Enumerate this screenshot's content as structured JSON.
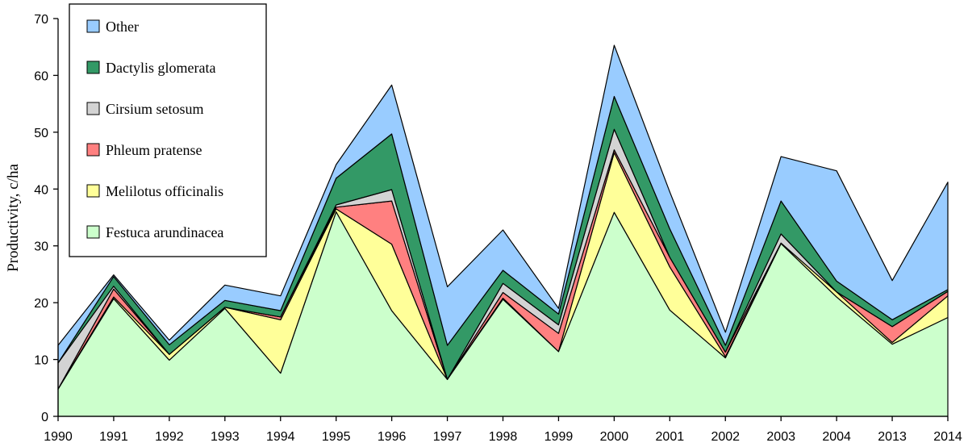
{
  "chart_data": {
    "type": "area",
    "stacked": true,
    "title": "",
    "xlabel": "",
    "ylabel": "Productivity, c/ha",
    "ylim": [
      0,
      70
    ],
    "yticks": [
      0,
      10,
      20,
      30,
      40,
      50,
      60,
      70
    ],
    "grid": false,
    "legend_position": "top-left",
    "categories": [
      "1990",
      "1991",
      "1992",
      "1993",
      "1994",
      "1995",
      "1996",
      "1997",
      "1998",
      "1999",
      "2000",
      "2001",
      "2002",
      "2003",
      "2004",
      "2013",
      "2014"
    ],
    "series": [
      {
        "name": "Festuca arundinacea",
        "color": "#ccffcc",
        "values": [
          4.8,
          20.7,
          9.9,
          19.0,
          7.6,
          36.0,
          18.6,
          6.5,
          20.6,
          11.4,
          35.9,
          18.7,
          10.3,
          30.4,
          21.0,
          12.7,
          17.4
        ]
      },
      {
        "name": "Melilotus officinalis",
        "color": "#ffff99",
        "values": [
          0,
          0.3,
          1.0,
          0.2,
          9.4,
          0.5,
          11.7,
          0,
          0.2,
          0,
          10.5,
          7.6,
          0.2,
          0.1,
          0.9,
          0.3,
          3.8
        ]
      },
      {
        "name": "Phleum pratense",
        "color": "#ff8080",
        "values": [
          0,
          1.4,
          0,
          0,
          0.5,
          0.3,
          7.6,
          0,
          1.0,
          3.2,
          0.5,
          1.7,
          0.8,
          0,
          0,
          2.8,
          0.8
        ]
      },
      {
        "name": "Cirsium setosum",
        "color": "#d3d3d3",
        "values": [
          4.6,
          0.5,
          0,
          0,
          0,
          0.4,
          2.0,
          0,
          1.6,
          1.5,
          3.6,
          0,
          0,
          1.6,
          0,
          0,
          0
        ]
      },
      {
        "name": "Dactylis glomerata",
        "color": "#339966",
        "values": [
          0,
          1.7,
          1.7,
          1.2,
          1.1,
          4.7,
          9.8,
          6.0,
          2.3,
          1.9,
          5.8,
          5.0,
          1.2,
          5.8,
          1.9,
          1.2,
          0.3
        ]
      },
      {
        "name": "Other",
        "color": "#99ccff",
        "values": [
          3.1,
          0.3,
          0.8,
          2.7,
          2.6,
          2.4,
          8.6,
          10.3,
          7.1,
          1.0,
          9.0,
          6.5,
          2.3,
          7.8,
          19.4,
          6.9,
          18.9
        ]
      }
    ]
  }
}
